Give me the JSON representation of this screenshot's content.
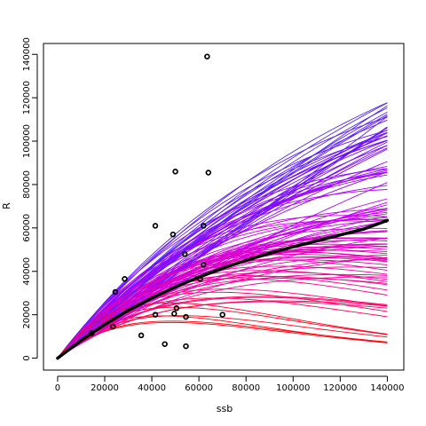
{
  "chart_data": {
    "type": "scatter",
    "title": "",
    "xlabel": "ssb",
    "ylabel": "R",
    "xlim": [
      -6000,
      147000
    ],
    "ylim": [
      -5500,
      145000
    ],
    "x_ticks": [
      0,
      20000,
      40000,
      60000,
      80000,
      100000,
      120000,
      140000
    ],
    "y_ticks": [
      0,
      20000,
      40000,
      60000,
      80000,
      100000,
      120000,
      140000
    ],
    "grid": false,
    "legend": "none",
    "colors": {
      "points": "#000000",
      "main_curve": "#000000",
      "curve_palette": [
        "#ff0000",
        "#ff0080",
        "#e000c0",
        "#c000ff",
        "#8000ff",
        "#4a2cff"
      ]
    },
    "points": [
      {
        "x": 14500,
        "y": 11500
      },
      {
        "x": 23500,
        "y": 14500
      },
      {
        "x": 24500,
        "y": 30500
      },
      {
        "x": 28500,
        "y": 36500
      },
      {
        "x": 35500,
        "y": 10500
      },
      {
        "x": 41500,
        "y": 61000
      },
      {
        "x": 41500,
        "y": 20000
      },
      {
        "x": 45500,
        "y": 6500
      },
      {
        "x": 49000,
        "y": 57000
      },
      {
        "x": 49500,
        "y": 20500
      },
      {
        "x": 50000,
        "y": 86000
      },
      {
        "x": 50500,
        "y": 23000
      },
      {
        "x": 54000,
        "y": 48000
      },
      {
        "x": 54500,
        "y": 19000
      },
      {
        "x": 54500,
        "y": 5500
      },
      {
        "x": 60500,
        "y": 36500
      },
      {
        "x": 62000,
        "y": 61000
      },
      {
        "x": 62000,
        "y": 43000
      },
      {
        "x": 63500,
        "y": 139000
      },
      {
        "x": 64000,
        "y": 85500
      },
      {
        "x": 70000,
        "y": 20000
      }
    ],
    "fitted_curve": {
      "x": [
        0,
        10000,
        20000,
        30000,
        40000,
        50000,
        60000,
        70000,
        80000,
        90000,
        100000,
        110000,
        120000,
        130000,
        140000
      ],
      "y": [
        0,
        8200,
        15500,
        22000,
        27700,
        32800,
        37300,
        41400,
        45000,
        48300,
        51300,
        54000,
        56800,
        59500,
        63500
      ]
    }
  }
}
